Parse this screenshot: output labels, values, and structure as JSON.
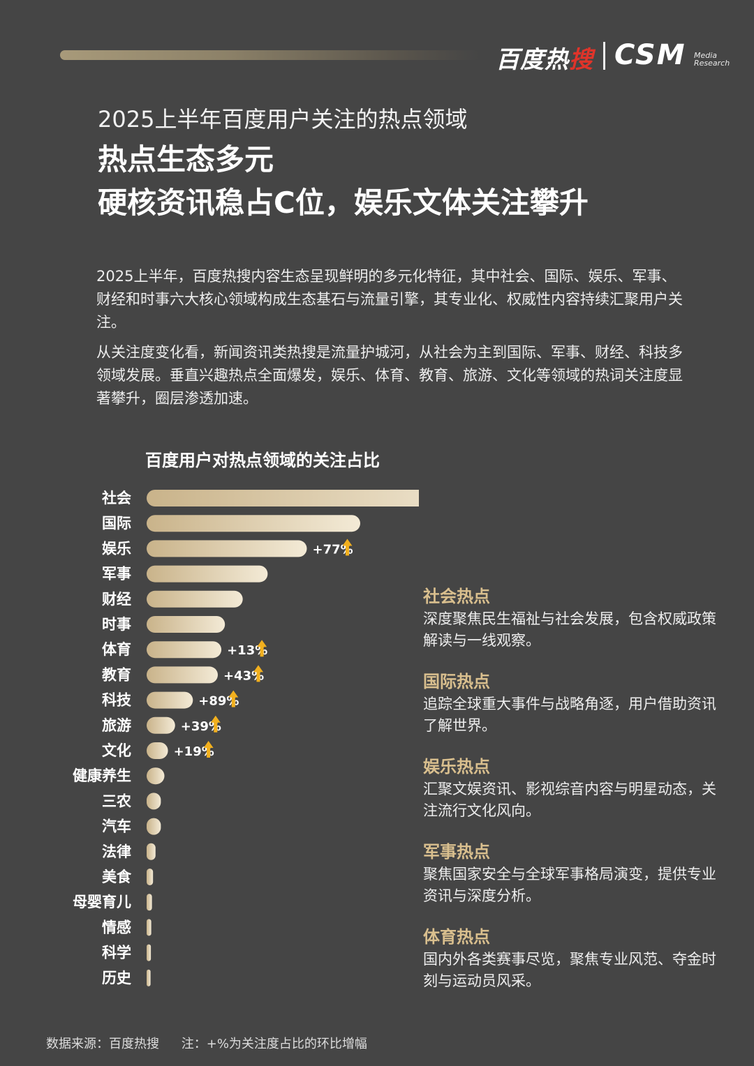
{
  "header": {
    "baidu_logo_main": "百度热",
    "baidu_logo_red": "搜",
    "csm_logo": "CSM",
    "csm_sub1": "Media",
    "csm_sub2": "Research"
  },
  "subtitle": "2025上半年百度用户关注的热点领域",
  "headline_line1": "热点生态多元",
  "headline_line2": "硬核资讯稳占C位，娱乐文体关注攀升",
  "paragraph1": "2025上半年，百度热搜内容生态呈现鲜明的多元化特征，其中社会、国际、娱乐、军事、财经和时事六大核心领域构成生态基石与流量引擎，其专业化、权威性内容持续汇聚用户关注。",
  "paragraph2": "从关注度变化看，新闻资讯类热搜是流量护城河，从社会为主到国际、军事、财经、科技多领域发展。垂直兴趣热点全面爆发，娱乐、体育、教育、旅游、文化等领域的热词关注度显著攀升，圈层渗透加速。",
  "chart_data": {
    "type": "bar",
    "orientation": "horizontal",
    "title": "百度用户对热点领域的关注占比",
    "categories": [
      "社会",
      "国际",
      "娱乐",
      "军事",
      "财经",
      "时事",
      "体育",
      "教育",
      "科技",
      "旅游",
      "文化",
      "健康养生",
      "三农",
      "汽车",
      "法律",
      "美食",
      "母婴育儿",
      "情感",
      "科学",
      "历史"
    ],
    "values": [
      100,
      60,
      45,
      34,
      27,
      22,
      21,
      20,
      13,
      8,
      6,
      5,
      4,
      4,
      2.5,
      1.8,
      1.5,
      1.3,
      1.2,
      1.1
    ],
    "growth_labels": [
      "",
      "",
      "+77%",
      "",
      "",
      "",
      "+13%",
      "+43%",
      "+89%",
      "+39%",
      "+19%",
      "",
      "",
      "",
      "",
      "",
      "",
      "",
      "",
      ""
    ],
    "xlim": [
      0,
      100
    ],
    "grid": false,
    "colors": {
      "bar_start": "#c9b38a",
      "bar_end": "#f3ead6",
      "arrow": "#f2b01e"
    }
  },
  "notes": [
    {
      "title": "社会热点",
      "body": "深度聚焦民生福祉与社会发展，包含权威政策解读与一线观察。"
    },
    {
      "title": "国际热点",
      "body": "追踪全球重大事件与战略角逐，用户借助资讯了解世界。"
    },
    {
      "title": "娱乐热点",
      "body": "汇聚文娱资讯、影视综音内容与明星动态，关注流行文化风向。"
    },
    {
      "title": "军事热点",
      "body": "聚焦国家安全与全球军事格局演变，提供专业资讯与深度分析。"
    },
    {
      "title": "体育热点",
      "body": "国内外各类赛事尽览，聚焦专业风范、夺金时刻与运动员风采。"
    }
  ],
  "footer": {
    "source": "数据来源：百度热搜",
    "note": "注：+%为关注度占比的环比增幅"
  }
}
